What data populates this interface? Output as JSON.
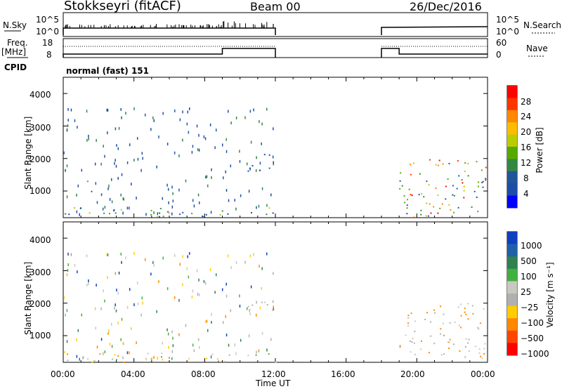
{
  "header": {
    "station": "Stokkseyri (fitACF)",
    "beam": "Beam 00",
    "date": "26/Dec/2016"
  },
  "nsky_panel": {
    "left_label": "N.Sky",
    "right_label": "N.Search",
    "left_ticks": [
      "10^5",
      "10^0"
    ],
    "right_ticks": [
      "10^5",
      "10^0"
    ]
  },
  "freq_panel": {
    "left_label_1": "Freq.",
    "left_label_2": "[MHz]",
    "right_label": "Nave",
    "left_ticks": [
      "18",
      "8"
    ],
    "right_ticks": [
      "60",
      "0"
    ]
  },
  "cpid": {
    "label": "CPID",
    "value": "normal (fast) 151"
  },
  "power_colorbar": {
    "label": "Power [dB]",
    "ticks": [
      "28",
      "24",
      "20",
      "16",
      "12",
      "8",
      "4"
    ],
    "colors": [
      "#ff0000",
      "#ff3300",
      "#ff8800",
      "#ffbb00",
      "#bbcc00",
      "#55aa00",
      "#338844",
      "#225599",
      "#1a4ea8",
      "#0000ff"
    ]
  },
  "velocity_colorbar": {
    "label": "Velocity [m s⁻¹]",
    "ticks": [
      "1000",
      "500",
      "100",
      "25",
      "−25",
      "−100",
      "−500",
      "−1000"
    ],
    "colors": [
      "#1040c0",
      "#2060a8",
      "#308050",
      "#40b040",
      "#c8c8c0",
      "#b0b0b0",
      "#ffcc00",
      "#ff8800",
      "#ff4400",
      "#ff0000"
    ]
  },
  "chart_data": [
    {
      "type": "heatmap",
      "title": "Power",
      "ylabel": "Slant Range [km]",
      "yticks": [
        "4000",
        "3000",
        "2000",
        "1000"
      ],
      "ylim": [
        180,
        4500
      ],
      "xlim_hours": [
        0,
        24
      ],
      "scatter_regions": [
        {
          "t0": 0.0,
          "t1": 12.0,
          "r0": 180,
          "r1": 500,
          "level": "mixed"
        },
        {
          "t0": 1.3,
          "t1": 1.6,
          "r0": 800,
          "r1": 1500,
          "level": "mixed"
        },
        {
          "t0": 10.3,
          "t1": 11.9,
          "r0": 1600,
          "r1": 2200,
          "level": "low"
        },
        {
          "t0": 19.0,
          "t1": 23.9,
          "r0": 180,
          "r1": 2000,
          "level": "mixed-high"
        }
      ]
    },
    {
      "type": "heatmap",
      "title": "Velocity",
      "ylabel": "Slant Range [km]",
      "yticks": [
        "4000",
        "3000",
        "2000",
        "1000"
      ],
      "ylim": [
        180,
        4500
      ],
      "xlim_hours": [
        0,
        24
      ],
      "scatter_regions": [
        {
          "t0": 0.0,
          "t1": 12.0,
          "r0": 180,
          "r1": 500,
          "level": "mixed"
        },
        {
          "t0": 10.3,
          "t1": 11.9,
          "r0": 1600,
          "r1": 2200,
          "level": "near-zero"
        },
        {
          "t0": 19.0,
          "t1": 23.9,
          "r0": 300,
          "r1": 2000,
          "level": "negative"
        }
      ]
    }
  ],
  "x_axis": {
    "label": "Time UT",
    "ticks": [
      "00:00",
      "04:00",
      "08:00",
      "12:00",
      "16:00",
      "20:00",
      "00:00"
    ]
  }
}
